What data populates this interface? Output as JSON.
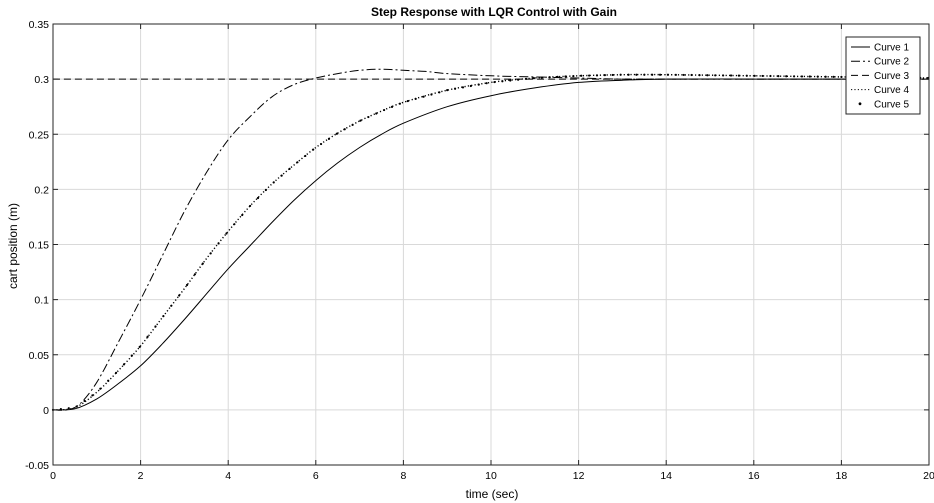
{
  "chart_data": {
    "type": "line",
    "title": "Step Response with LQR Control with Gain",
    "xlabel": "time (sec)",
    "ylabel": "cart position (m)",
    "xlim": [
      0,
      20
    ],
    "ylim": [
      -0.05,
      0.35
    ],
    "xticks": [
      0,
      2,
      4,
      6,
      8,
      10,
      12,
      14,
      16,
      18,
      20
    ],
    "yticks": [
      -0.05,
      0,
      0.05,
      0.1,
      0.15,
      0.2,
      0.25,
      0.3,
      0.35
    ],
    "xtick_labels": [
      "0",
      "2",
      "4",
      "6",
      "8",
      "10",
      "12",
      "14",
      "16",
      "18",
      "20"
    ],
    "ytick_labels": [
      "-0.05",
      "0",
      "0.05",
      "0.1",
      "0.15",
      "0.2",
      "0.25",
      "0.3",
      "0.35"
    ],
    "grid": true,
    "legend_position": "top-right",
    "series": [
      {
        "name": "Curve 1",
        "style": "solid",
        "x": [
          0,
          0.5,
          1,
          1.5,
          2,
          2.5,
          3,
          3.5,
          4,
          4.5,
          5,
          5.5,
          6,
          6.5,
          7,
          7.5,
          8,
          9,
          10,
          11,
          12,
          13,
          14,
          16,
          18,
          20
        ],
        "y": [
          0,
          0.001,
          0.01,
          0.024,
          0.04,
          0.06,
          0.082,
          0.105,
          0.128,
          0.149,
          0.17,
          0.19,
          0.208,
          0.224,
          0.238,
          0.25,
          0.26,
          0.275,
          0.285,
          0.292,
          0.297,
          0.299,
          0.3,
          0.3,
          0.3,
          0.3
        ]
      },
      {
        "name": "Curve 2",
        "style": "dashdot",
        "x": [
          0,
          0.3,
          0.6,
          1,
          1.5,
          2,
          2.5,
          3,
          3.5,
          4,
          4.5,
          5,
          5.5,
          6,
          6.5,
          7,
          7.5,
          8,
          8.5,
          9,
          10,
          11,
          12,
          13,
          14,
          16,
          18,
          20
        ],
        "y": [
          0,
          0,
          0.005,
          0.025,
          0.062,
          0.1,
          0.14,
          0.18,
          0.215,
          0.245,
          0.266,
          0.284,
          0.295,
          0.301,
          0.305,
          0.308,
          0.309,
          0.308,
          0.307,
          0.305,
          0.303,
          0.302,
          0.301,
          0.3,
          0.3,
          0.3,
          0.3,
          0.3
        ]
      },
      {
        "name": "Curve 3",
        "style": "dashed",
        "x": [
          0,
          10,
          12,
          14,
          16,
          18,
          20
        ],
        "y": [
          0.3,
          0.3,
          0.3,
          0.3,
          0.3,
          0.3,
          0.3
        ],
        "hidden_behind": true
      },
      {
        "name": "Curve 4",
        "style": "dotted",
        "x": [
          0,
          0.5,
          1,
          1.5,
          2,
          2.5,
          3,
          3.5,
          4,
          4.5,
          5,
          5.5,
          6,
          6.5,
          7,
          7.5,
          8,
          9,
          10,
          11,
          12,
          13,
          14,
          16,
          18,
          20
        ],
        "y": [
          0,
          0.002,
          0.016,
          0.036,
          0.058,
          0.084,
          0.11,
          0.137,
          0.162,
          0.185,
          0.205,
          0.222,
          0.238,
          0.251,
          0.262,
          0.271,
          0.279,
          0.29,
          0.297,
          0.301,
          0.303,
          0.304,
          0.304,
          0.303,
          0.302,
          0.301
        ]
      },
      {
        "name": "Curve 5",
        "style": "points",
        "x": [
          0,
          0.5,
          1,
          1.5,
          2,
          2.5,
          3,
          3.5,
          4,
          4.5,
          5,
          5.5,
          6,
          6.5,
          7,
          7.5,
          8,
          9,
          10,
          11,
          12,
          13,
          14,
          16,
          18,
          20
        ],
        "y": [
          0,
          0.002,
          0.016,
          0.036,
          0.058,
          0.084,
          0.11,
          0.137,
          0.162,
          0.185,
          0.205,
          0.222,
          0.238,
          0.251,
          0.262,
          0.271,
          0.279,
          0.29,
          0.297,
          0.301,
          0.303,
          0.304,
          0.304,
          0.303,
          0.302,
          0.301
        ]
      }
    ]
  }
}
